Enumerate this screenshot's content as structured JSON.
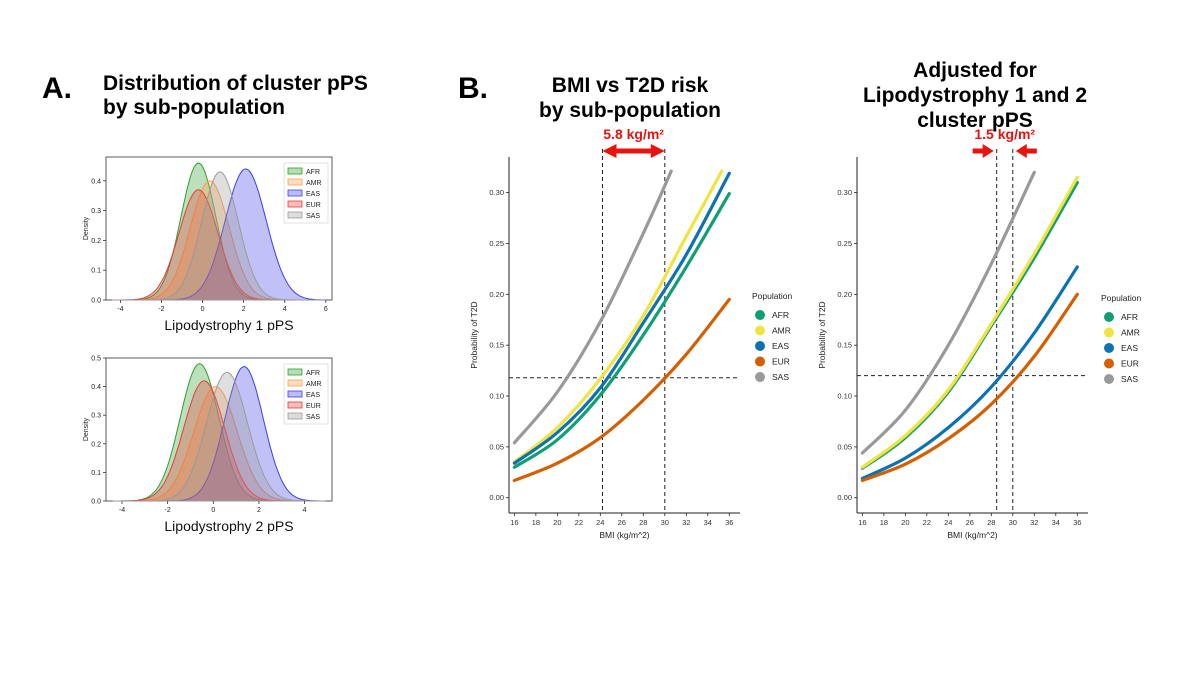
{
  "panel_a": {
    "letter": "A.",
    "title_line1": "Distribution of cluster pPS",
    "title_line2": "by sub-population"
  },
  "panel_b": {
    "letter": "B.",
    "title_line1": "BMI vs T2D risk",
    "title_line2": "by sub-population"
  },
  "panel_c": {
    "title_line1": "Adjusted for",
    "title_line2": "Lipodystrophy 1 and 2",
    "title_line3": "cluster pPS"
  },
  "colors": {
    "AFR": "#109e73",
    "AMR": "#f0e442",
    "EAS": "#0d72b2",
    "EUR": "#d55e00",
    "SAS": "#999999",
    "annotation": "#e8130f"
  },
  "density_colors": {
    "AFR": "#2ca02c",
    "AMR": "#ff9e4a",
    "EAS": "#3f3fe8",
    "EUR": "#e83c3c",
    "SAS": "#9a9a9a"
  },
  "chart_data": [
    {
      "id": "density1",
      "type": "area",
      "title": "",
      "xlabel": "Lipodystrophy 1 pPS",
      "ylabel": "Density",
      "xlim": [
        -4.7,
        6.3
      ],
      "ylim": [
        0,
        0.48
      ],
      "xticks": [
        "-4",
        "-2",
        "0",
        "2",
        "4",
        "6"
      ],
      "xtick_values": [
        -4,
        -2,
        0,
        2,
        4,
        6
      ],
      "yticks": [
        "0.0",
        "0.1",
        "0.2",
        "0.3",
        "0.4"
      ],
      "ytick_values": [
        0,
        0.1,
        0.2,
        0.3,
        0.4
      ],
      "legend": [
        "AFR",
        "AMR",
        "EAS",
        "EUR",
        "SAS"
      ],
      "series": [
        {
          "name": "AFR",
          "mean": -0.2,
          "sd": 0.85,
          "peak": 0.46
        },
        {
          "name": "AMR",
          "mean": 0.35,
          "sd": 0.95,
          "peak": 0.4
        },
        {
          "name": "EAS",
          "mean": 2.1,
          "sd": 1.0,
          "peak": 0.44
        },
        {
          "name": "EUR",
          "mean": -0.2,
          "sd": 0.95,
          "peak": 0.37
        },
        {
          "name": "SAS",
          "mean": 0.85,
          "sd": 0.9,
          "peak": 0.43
        }
      ]
    },
    {
      "id": "density2",
      "type": "area",
      "title": "",
      "xlabel": "Lipodystrophy 2 pPS",
      "ylabel": "Density",
      "xlim": [
        -4.7,
        5.2
      ],
      "ylim": [
        0,
        0.5
      ],
      "xticks": [
        "-4",
        "-2",
        "0",
        "2",
        "4"
      ],
      "xtick_values": [
        -4,
        -2,
        0,
        2,
        4
      ],
      "yticks": [
        "0.0",
        "0.1",
        "0.2",
        "0.3",
        "0.4",
        "0.5"
      ],
      "ytick_values": [
        0,
        0.1,
        0.2,
        0.3,
        0.4,
        0.5
      ],
      "legend": [
        "AFR",
        "AMR",
        "EAS",
        "EUR",
        "SAS"
      ],
      "series": [
        {
          "name": "AFR",
          "mean": -0.6,
          "sd": 0.85,
          "peak": 0.48
        },
        {
          "name": "AMR",
          "mean": 0.1,
          "sd": 0.95,
          "peak": 0.4
        },
        {
          "name": "EAS",
          "mean": 1.35,
          "sd": 0.85,
          "peak": 0.47
        },
        {
          "name": "EUR",
          "mean": -0.4,
          "sd": 0.9,
          "peak": 0.42
        },
        {
          "name": "SAS",
          "mean": 0.6,
          "sd": 0.9,
          "peak": 0.45
        }
      ]
    },
    {
      "id": "bmi_unadjusted",
      "type": "line",
      "title": "BMI vs T2D risk by sub-population",
      "xlabel": "BMI (kg/m^2)",
      "ylabel": "Probability of T2D",
      "xlim": [
        15.5,
        37
      ],
      "ylim": [
        -0.015,
        0.335
      ],
      "xticks": [
        "16",
        "18",
        "20",
        "22",
        "24",
        "26",
        "28",
        "30",
        "32",
        "34",
        "36"
      ],
      "xtick_values": [
        16,
        18,
        20,
        22,
        24,
        26,
        28,
        30,
        32,
        34,
        36
      ],
      "yticks": [
        "0.00",
        "0.05",
        "0.10",
        "0.15",
        "0.20",
        "0.25",
        "0.30"
      ],
      "ytick_values": [
        0,
        0.05,
        0.1,
        0.15,
        0.2,
        0.25,
        0.3
      ],
      "legend_title": "Population",
      "legend": [
        "AFR",
        "AMR",
        "EAS",
        "EUR",
        "SAS"
      ],
      "series": [
        {
          "name": "AFR",
          "x": [
            16,
            20,
            24,
            28,
            32,
            36
          ],
          "y": [
            0.03,
            0.057,
            0.101,
            0.16,
            0.227,
            0.299
          ]
        },
        {
          "name": "AMR",
          "x": [
            16,
            20,
            24,
            28,
            32,
            35.3
          ],
          "y": [
            0.035,
            0.069,
            0.117,
            0.179,
            0.257,
            0.321
          ]
        },
        {
          "name": "EAS",
          "x": [
            16,
            20,
            24,
            28,
            32,
            36
          ],
          "y": [
            0.034,
            0.064,
            0.108,
            0.172,
            0.239,
            0.319
          ]
        },
        {
          "name": "EUR",
          "x": [
            16,
            20,
            24,
            28,
            32,
            36
          ],
          "y": [
            0.017,
            0.034,
            0.059,
            0.096,
            0.141,
            0.195
          ]
        },
        {
          "name": "SAS",
          "x": [
            16,
            20,
            24,
            28,
            30.6
          ],
          "y": [
            0.054,
            0.104,
            0.173,
            0.26,
            0.321
          ]
        }
      ],
      "hline": 0.118,
      "vlines": [
        24.2,
        30
      ],
      "annotation": "5.8 kg/m²",
      "annotation_arrow": "double"
    },
    {
      "id": "bmi_adjusted",
      "type": "line",
      "title": "Adjusted for Lipodystrophy 1 and 2 cluster pPS",
      "xlabel": "BMI (kg/m^2)",
      "ylabel": "Probability of T2D",
      "xlim": [
        15.5,
        37
      ],
      "ylim": [
        -0.015,
        0.335
      ],
      "xticks": [
        "16",
        "18",
        "20",
        "22",
        "24",
        "26",
        "28",
        "30",
        "32",
        "34",
        "36"
      ],
      "xtick_values": [
        16,
        18,
        20,
        22,
        24,
        26,
        28,
        30,
        32,
        34,
        36
      ],
      "yticks": [
        "0.00",
        "0.05",
        "0.10",
        "0.15",
        "0.20",
        "0.25",
        "0.30"
      ],
      "ytick_values": [
        0,
        0.05,
        0.1,
        0.15,
        0.2,
        0.25,
        0.3
      ],
      "legend_title": "Population",
      "legend": [
        "AFR",
        "AMR",
        "EAS",
        "EUR",
        "SAS"
      ],
      "series": [
        {
          "name": "AFR",
          "x": [
            16,
            20,
            24,
            28,
            32,
            36
          ],
          "y": [
            0.029,
            0.059,
            0.104,
            0.169,
            0.236,
            0.31
          ]
        },
        {
          "name": "AMR",
          "x": [
            16,
            20,
            24,
            28,
            32,
            36
          ],
          "y": [
            0.03,
            0.061,
            0.106,
            0.171,
            0.24,
            0.315
          ]
        },
        {
          "name": "EAS",
          "x": [
            16,
            20,
            24,
            28,
            32,
            36
          ],
          "y": [
            0.019,
            0.039,
            0.069,
            0.109,
            0.162,
            0.227
          ]
        },
        {
          "name": "EUR",
          "x": [
            16,
            20,
            24,
            28,
            32,
            36
          ],
          "y": [
            0.017,
            0.033,
            0.058,
            0.092,
            0.139,
            0.2
          ]
        },
        {
          "name": "SAS",
          "x": [
            16,
            20,
            24,
            28,
            32
          ],
          "y": [
            0.044,
            0.086,
            0.15,
            0.23,
            0.32
          ]
        }
      ],
      "hline": 0.12,
      "vlines": [
        28.5,
        30
      ],
      "annotation": "1.5 kg/m²",
      "annotation_arrow": "converging"
    }
  ]
}
